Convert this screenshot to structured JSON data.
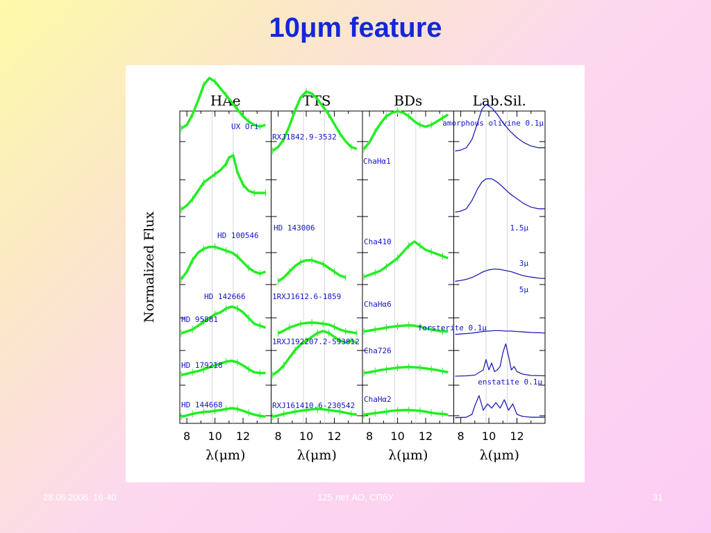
{
  "slide": {
    "title": "10μm feature",
    "footer_date": "28.06.2006. 16-40",
    "footer_center": "125 лет АО, СПбУ",
    "page_number": "31"
  },
  "colors": {
    "title": "#1428d8",
    "data": "#22ee22",
    "lab": "#1e1eb4",
    "labels": "#1414c8"
  },
  "chart_data": {
    "type": "line",
    "ylabel": "Normalized Flux",
    "xlim": [
      7.5,
      14.0
    ],
    "xticks": [
      8,
      10,
      12
    ],
    "gridlines_x": [
      9.8,
      11.3
    ],
    "panels": [
      {
        "title": "HAe",
        "xlabel": "λ(μm)",
        "series": [
          {
            "name": "UX Ori",
            "x": [
              7.6,
              8.0,
              8.4,
              8.8,
              9.2,
              9.6,
              10.0,
              10.4,
              10.8,
              11.2,
              11.6,
              12.0,
              12.4,
              12.8,
              13.2,
              13.6
            ],
            "y": [
              0.7,
              0.8,
              1.1,
              1.5,
              1.95,
              2.15,
              2.05,
              1.85,
              1.65,
              1.45,
              1.25,
              1.05,
              0.9,
              0.8,
              0.75,
              0.8
            ]
          },
          {
            "name": "HD 100546",
            "x": [
              7.6,
              8.0,
              8.4,
              8.8,
              9.2,
              9.6,
              10.0,
              10.4,
              10.8,
              11.0,
              11.3,
              11.6,
              12.0,
              12.4,
              12.8,
              13.2,
              13.6
            ],
            "y": [
              0.1,
              0.2,
              0.35,
              0.55,
              0.75,
              0.85,
              0.95,
              1.05,
              1.2,
              1.35,
              1.4,
              1.0,
              0.7,
              0.55,
              0.5,
              0.5,
              0.5
            ]
          },
          {
            "name": "HD 142666",
            "x": [
              7.6,
              8.0,
              8.4,
              8.8,
              9.2,
              9.6,
              10.0,
              10.4,
              10.8,
              11.2,
              11.6,
              12.0,
              12.4,
              12.8,
              13.2,
              13.6
            ],
            "y": [
              0.1,
              0.3,
              0.6,
              0.8,
              0.9,
              0.95,
              0.95,
              0.9,
              0.85,
              0.8,
              0.7,
              0.55,
              0.4,
              0.3,
              0.25,
              0.3
            ]
          },
          {
            "name": "HD 95881",
            "x": [
              7.6,
              8.0,
              8.4,
              8.8,
              9.2,
              9.6,
              10.0,
              10.4,
              10.8,
              11.2,
              11.6,
              12.0,
              12.4,
              12.8,
              13.2,
              13.6
            ],
            "y": [
              0.05,
              0.1,
              0.15,
              0.25,
              0.35,
              0.45,
              0.55,
              0.6,
              0.7,
              0.75,
              0.7,
              0.6,
              0.45,
              0.3,
              0.25,
              0.2
            ]
          },
          {
            "name": "HD 179218",
            "x": [
              7.6,
              8.0,
              8.4,
              8.8,
              9.2,
              9.6,
              10.0,
              10.4,
              10.8,
              11.2,
              11.6,
              12.0,
              12.4,
              12.8,
              13.2,
              13.6
            ],
            "y": [
              0.05,
              0.08,
              0.12,
              0.15,
              0.2,
              0.25,
              0.3,
              0.35,
              0.4,
              0.42,
              0.38,
              0.3,
              0.2,
              0.12,
              0.1,
              0.1
            ]
          },
          {
            "name": "HD 144668",
            "x": [
              7.6,
              8.0,
              8.4,
              8.8,
              9.2,
              9.6,
              10.0,
              10.4,
              10.8,
              11.2,
              11.6,
              12.0,
              12.4,
              12.8,
              13.2,
              13.6
            ],
            "y": [
              0.05,
              0.08,
              0.12,
              0.15,
              0.17,
              0.18,
              0.2,
              0.22,
              0.25,
              0.27,
              0.25,
              0.2,
              0.15,
              0.1,
              0.07,
              0.05
            ]
          }
        ]
      },
      {
        "title": "TTS",
        "xlabel": "λ(μm)",
        "series": [
          {
            "name": "RXJ1842.9-3532",
            "x": [
              7.6,
              8.0,
              8.4,
              8.8,
              9.2,
              9.6,
              10.0,
              10.4,
              10.8,
              11.2,
              11.6,
              12.0,
              12.4,
              12.8,
              13.2,
              13.6
            ],
            "y": [
              0.05,
              0.15,
              0.35,
              0.7,
              1.1,
              1.45,
              1.6,
              1.55,
              1.4,
              1.2,
              1.0,
              0.75,
              0.5,
              0.3,
              0.15,
              0.1
            ]
          },
          {
            "name": "HD 143006",
            "x": [
              8.0,
              8.4,
              8.8,
              9.2,
              9.6,
              10.0,
              10.4,
              10.8,
              11.2,
              11.6,
              12.0,
              12.4,
              12.8
            ],
            "y": [
              0.05,
              0.15,
              0.3,
              0.45,
              0.55,
              0.6,
              0.6,
              0.55,
              0.5,
              0.4,
              0.3,
              0.2,
              0.15
            ]
          },
          {
            "name": "1RXJ1612.6-1859",
            "x": [
              8.0,
              8.4,
              8.8,
              9.2,
              9.6,
              10.0,
              10.4,
              10.8,
              11.2,
              11.6,
              12.0,
              12.4,
              12.8,
              13.2,
              13.6
            ],
            "y": [
              0.05,
              0.12,
              0.2,
              0.25,
              0.3,
              0.32,
              0.33,
              0.32,
              0.3,
              0.28,
              0.22,
              0.15,
              0.1,
              0.08,
              0.05
            ]
          },
          {
            "name": "1RXJ192207.2-593812",
            "x": [
              7.6,
              8.0,
              8.4,
              8.8,
              9.2,
              9.6,
              10.0,
              10.4,
              10.8,
              11.2,
              11.6,
              12.0,
              12.4,
              12.8,
              13.2,
              13.6
            ],
            "y": [
              0.05,
              0.15,
              0.3,
              0.5,
              0.7,
              0.85,
              0.95,
              1.05,
              1.15,
              1.2,
              1.15,
              1.05,
              0.95,
              0.9,
              0.95,
              0.9
            ]
          },
          {
            "name": "RXJ161410.6-230542",
            "x": [
              7.6,
              8.0,
              8.4,
              8.8,
              9.2,
              9.6,
              10.0,
              10.4,
              10.8,
              11.2,
              11.6,
              12.0,
              12.4,
              12.8,
              13.2,
              13.6
            ],
            "y": [
              0.05,
              0.08,
              0.12,
              0.15,
              0.18,
              0.2,
              0.22,
              0.24,
              0.25,
              0.24,
              0.22,
              0.2,
              0.18,
              0.15,
              0.12,
              0.1
            ]
          }
        ]
      },
      {
        "title": "BDs",
        "xlabel": "λ(μm)",
        "series": [
          {
            "name": "ChaHα1",
            "x": [
              7.6,
              8.0,
              8.4,
              8.8,
              9.2,
              9.6,
              10.0,
              10.4,
              10.8,
              11.2,
              11.6,
              12.0,
              12.4,
              12.8,
              13.2,
              13.6
            ],
            "y": [
              0.1,
              0.3,
              0.6,
              0.85,
              1.05,
              1.15,
              1.2,
              1.15,
              1.05,
              0.9,
              0.8,
              0.75,
              0.8,
              0.9,
              1.0,
              1.1
            ]
          },
          {
            "name": "Cha410",
            "x": [
              7.6,
              8.0,
              8.4,
              8.8,
              9.2,
              9.6,
              10.0,
              10.4,
              10.8,
              11.2,
              11.6,
              12.0,
              12.4,
              12.8,
              13.2,
              13.6
            ],
            "y": [
              0.15,
              0.2,
              0.25,
              0.3,
              0.4,
              0.5,
              0.6,
              0.75,
              0.9,
              1.0,
              0.9,
              0.8,
              0.75,
              0.7,
              0.65,
              0.6
            ]
          },
          {
            "name": "ChaHα6",
            "x": [
              7.6,
              8.0,
              8.4,
              8.8,
              9.2,
              9.6,
              10.0,
              10.4,
              10.8,
              11.2,
              11.6,
              12.0,
              12.4,
              12.8,
              13.2,
              13.6
            ],
            "y": [
              0.1,
              0.12,
              0.15,
              0.17,
              0.2,
              0.22,
              0.24,
              0.25,
              0.26,
              0.25,
              0.22,
              0.18,
              0.15,
              0.12,
              0.1,
              0.1
            ]
          },
          {
            "name": "Cha726",
            "x": [
              7.6,
              8.0,
              8.4,
              8.8,
              9.2,
              9.6,
              10.0,
              10.4,
              10.8,
              11.2,
              11.6,
              12.0,
              12.4,
              12.8,
              13.2,
              13.6
            ],
            "y": [
              0.1,
              0.12,
              0.15,
              0.18,
              0.2,
              0.22,
              0.24,
              0.25,
              0.26,
              0.25,
              0.24,
              0.22,
              0.2,
              0.18,
              0.15,
              0.12
            ]
          },
          {
            "name": "ChaHα2",
            "x": [
              7.6,
              8.0,
              8.4,
              8.8,
              9.2,
              9.6,
              10.0,
              10.4,
              10.8,
              11.2,
              11.6,
              12.0,
              12.4,
              12.8,
              13.2,
              13.6
            ],
            "y": [
              0.1,
              0.12,
              0.14,
              0.16,
              0.18,
              0.2,
              0.21,
              0.22,
              0.22,
              0.21,
              0.2,
              0.18,
              0.15,
              0.13,
              0.12,
              0.1
            ]
          }
        ]
      },
      {
        "title": "Lab.Sil.",
        "xlabel": "λ(μm)",
        "series": [
          {
            "name": "amorphous olivine 0.1μ",
            "x": [
              7.6,
              8.0,
              8.4,
              8.8,
              9.2,
              9.5,
              9.8,
              10.2,
              10.6,
              11.0,
              11.5,
              12.0,
              12.5,
              13.0,
              13.5,
              14.0
            ],
            "y": [
              0.05,
              0.08,
              0.15,
              0.4,
              0.9,
              1.3,
              1.45,
              1.35,
              1.15,
              0.9,
              0.65,
              0.45,
              0.3,
              0.2,
              0.15,
              0.15
            ]
          },
          {
            "name": "1.5μ",
            "x": [
              7.6,
              8.0,
              8.4,
              8.8,
              9.2,
              9.5,
              9.8,
              10.2,
              10.6,
              11.0,
              11.5,
              12.0,
              12.5,
              13.0,
              13.5,
              14.0
            ],
            "y": [
              0.05,
              0.08,
              0.15,
              0.4,
              0.75,
              0.95,
              1.05,
              1.05,
              0.95,
              0.8,
              0.6,
              0.45,
              0.3,
              0.2,
              0.15,
              0.15
            ]
          },
          {
            "name": "3μ",
            "x": [
              7.6,
              8.0,
              8.4,
              8.8,
              9.2,
              9.6,
              10.0,
              10.4,
              10.8,
              11.2,
              11.6,
              12.0,
              12.4,
              12.8,
              13.2,
              13.6,
              14.0
            ],
            "y": [
              0.05,
              0.07,
              0.1,
              0.15,
              0.22,
              0.3,
              0.35,
              0.37,
              0.36,
              0.33,
              0.3,
              0.25,
              0.2,
              0.17,
              0.15,
              0.13,
              0.12
            ]
          },
          {
            "name": "5μ",
            "x": [
              7.6,
              8.0,
              8.4,
              8.8,
              9.2,
              9.6,
              10.0,
              10.4,
              10.8,
              11.2,
              11.6,
              12.0,
              12.4,
              12.8,
              13.2,
              13.6,
              14.0
            ],
            "y": [
              0.02,
              0.03,
              0.04,
              0.05,
              0.07,
              0.09,
              0.1,
              0.11,
              0.11,
              0.1,
              0.1,
              0.09,
              0.08,
              0.07,
              0.06,
              0.06,
              0.05
            ]
          },
          {
            "name": "forsterite 0.1μ",
            "x": [
              7.6,
              8.4,
              9.0,
              9.6,
              9.8,
              10.0,
              10.2,
              10.4,
              10.6,
              10.8,
              11.0,
              11.2,
              11.4,
              11.6,
              11.8,
              12.0,
              12.4,
              13.0,
              14.0
            ],
            "y": [
              0.02,
              0.03,
              0.05,
              0.2,
              0.5,
              0.2,
              0.4,
              0.15,
              0.2,
              0.3,
              0.7,
              0.95,
              0.6,
              0.2,
              0.3,
              0.15,
              0.08,
              0.04,
              0.03
            ]
          },
          {
            "name": "enstatite 0.1μ",
            "x": [
              7.6,
              8.4,
              8.8,
              9.0,
              9.3,
              9.6,
              9.9,
              10.2,
              10.5,
              10.8,
              11.1,
              11.4,
              11.7,
              12.0,
              12.4,
              13.0,
              14.0
            ],
            "y": [
              0.02,
              0.03,
              0.1,
              0.3,
              0.55,
              0.2,
              0.35,
              0.25,
              0.38,
              0.25,
              0.45,
              0.2,
              0.35,
              0.1,
              0.05,
              0.03,
              0.03
            ]
          }
        ]
      }
    ]
  }
}
